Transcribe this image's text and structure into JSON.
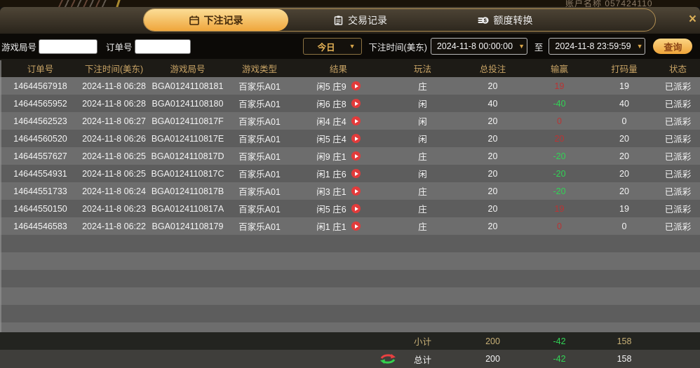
{
  "background": {
    "account_text": "账户名称 057424110"
  },
  "tabs": [
    {
      "label": "下注记录",
      "icon": "calendar-icon",
      "active": true
    },
    {
      "label": "交易记录",
      "icon": "clipboard-icon",
      "active": false
    },
    {
      "label": "额度转换",
      "icon": "coin-icon",
      "active": false
    }
  ],
  "close_label": "×",
  "filters": {
    "game_round_label": "游戏局号",
    "order_no_label": "订单号",
    "range_selected": "今日",
    "bet_time_label": "下注时间(美东)",
    "date_from": "2024-11-8 00:00:00",
    "to_label": "至",
    "date_to": "2024-11-8 23:59:59",
    "query_label": "查询",
    "caret": "▼"
  },
  "table": {
    "headers": [
      "订单号",
      "下注时间(美东)",
      "游戏局号",
      "游戏类型",
      "结果",
      "玩法",
      "总投注",
      "输赢",
      "打码量",
      "状态"
    ],
    "rows": [
      {
        "order": "14644567918",
        "time": "2024-11-8 06:28",
        "round": "BGA01241108181",
        "game": "百家乐A01",
        "result": "闲5 庄9",
        "play": "庄",
        "bet": "20",
        "winloss": "19",
        "wl": "pos",
        "rolling": "19",
        "status": "已派彩"
      },
      {
        "order": "14644565952",
        "time": "2024-11-8 06:28",
        "round": "BGA01241108180",
        "game": "百家乐A01",
        "result": "闲6 庄8",
        "play": "闲",
        "bet": "40",
        "winloss": "-40",
        "wl": "neg",
        "rolling": "40",
        "status": "已派彩"
      },
      {
        "order": "14644562523",
        "time": "2024-11-8 06:27",
        "round": "BGA0124110817F",
        "game": "百家乐A01",
        "result": "闲4 庄4",
        "play": "闲",
        "bet": "20",
        "winloss": "0",
        "wl": "pos",
        "rolling": "0",
        "status": "已派彩"
      },
      {
        "order": "14644560520",
        "time": "2024-11-8 06:26",
        "round": "BGA0124110817E",
        "game": "百家乐A01",
        "result": "闲5 庄4",
        "play": "闲",
        "bet": "20",
        "winloss": "20",
        "wl": "pos",
        "rolling": "20",
        "status": "已派彩"
      },
      {
        "order": "14644557627",
        "time": "2024-11-8 06:25",
        "round": "BGA0124110817D",
        "game": "百家乐A01",
        "result": "闲9 庄1",
        "play": "庄",
        "bet": "20",
        "winloss": "-20",
        "wl": "neg",
        "rolling": "20",
        "status": "已派彩"
      },
      {
        "order": "14644554931",
        "time": "2024-11-8 06:25",
        "round": "BGA0124110817C",
        "game": "百家乐A01",
        "result": "闲1 庄6",
        "play": "闲",
        "bet": "20",
        "winloss": "-20",
        "wl": "neg",
        "rolling": "20",
        "status": "已派彩"
      },
      {
        "order": "14644551733",
        "time": "2024-11-8 06:24",
        "round": "BGA0124110817B",
        "game": "百家乐A01",
        "result": "闲3 庄1",
        "play": "庄",
        "bet": "20",
        "winloss": "-20",
        "wl": "neg",
        "rolling": "20",
        "status": "已派彩"
      },
      {
        "order": "14644550150",
        "time": "2024-11-8 06:23",
        "round": "BGA0124110817A",
        "game": "百家乐A01",
        "result": "闲5 庄6",
        "play": "庄",
        "bet": "20",
        "winloss": "19",
        "wl": "pos",
        "rolling": "19",
        "status": "已派彩"
      },
      {
        "order": "14644546583",
        "time": "2024-11-8 06:22",
        "round": "BGA01241108179",
        "game": "百家乐A01",
        "result": "闲1 庄1",
        "play": "庄",
        "bet": "20",
        "winloss": "0",
        "wl": "pos",
        "rolling": "0",
        "status": "已派彩"
      }
    ],
    "subtotal": {
      "label": "小计",
      "bet": "200",
      "winloss": "-42",
      "rolling": "158"
    },
    "total": {
      "label": "总计",
      "bet": "200",
      "winloss": "-42",
      "rolling": "158"
    }
  },
  "colors": {
    "accent_gold": "#e8b45a",
    "tab_gradient_top": "#fbdd96",
    "tab_gradient_bottom": "#efa63c",
    "win_red": "#b93434",
    "loss_green": "#31d455"
  }
}
